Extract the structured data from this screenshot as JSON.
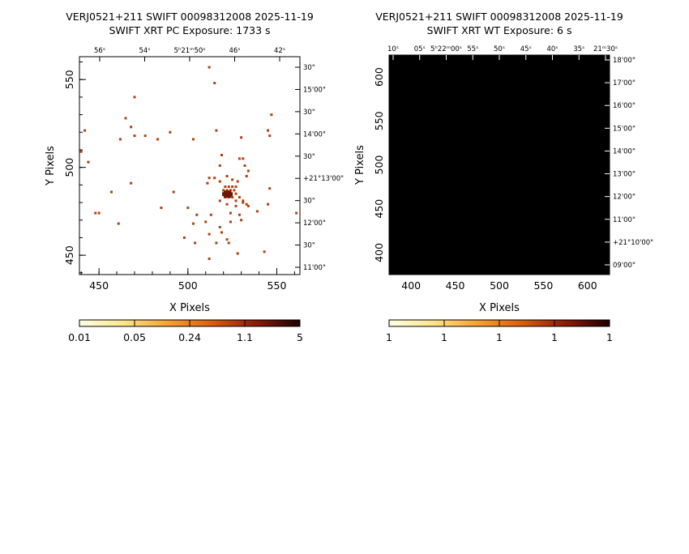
{
  "chart_data": [
    {
      "type": "scatter",
      "title": "VERJ0521+211 SWIFT 00098312008 2025-11-19",
      "subtitle": "SWIFT XRT PC Exposure:        1733 s",
      "xlabel": "X Pixels",
      "ylabel": "Y Pixels",
      "xlim": [
        439,
        563
      ],
      "ylim": [
        439,
        563
      ],
      "xticks": [
        "450",
        "500",
        "550"
      ],
      "yticks": [
        "450",
        "500",
        "550"
      ],
      "top_ticks": [
        "56ˢ",
        "54ˢ",
        "5ʰ21ᵐ50ˢ",
        "46ˢ",
        "42ˢ"
      ],
      "right_ticks": [
        "30\"",
        "15'00\"",
        "30\"",
        "14'00\"",
        "30\"",
        "+21°13'00\"",
        "30\"",
        "12'00\"",
        "30\"",
        "11'00\""
      ],
      "colorbar_ticks": [
        "0.01",
        "0.05",
        "0.24",
        "1.1",
        "5"
      ],
      "events": [
        [
          512,
          557
        ],
        [
          515,
          548
        ],
        [
          470,
          540
        ],
        [
          547,
          530
        ],
        [
          465,
          528
        ],
        [
          468,
          523
        ],
        [
          442,
          521
        ],
        [
          490,
          520
        ],
        [
          516,
          521
        ],
        [
          545,
          521
        ],
        [
          476,
          518
        ],
        [
          470,
          518
        ],
        [
          462,
          516
        ],
        [
          483,
          516
        ],
        [
          503,
          516
        ],
        [
          546,
          518
        ],
        [
          440,
          509
        ],
        [
          530,
          517
        ],
        [
          519,
          507
        ],
        [
          444,
          503
        ],
        [
          529,
          505
        ],
        [
          531,
          505
        ],
        [
          518,
          501
        ],
        [
          532,
          501
        ],
        [
          534,
          498
        ],
        [
          533,
          495
        ],
        [
          512,
          494
        ],
        [
          515,
          494
        ],
        [
          518,
          492
        ],
        [
          522,
          495
        ],
        [
          525,
          493
        ],
        [
          528,
          492
        ],
        [
          521,
          489
        ],
        [
          523,
          489
        ],
        [
          525,
          489
        ],
        [
          527,
          489
        ],
        [
          520,
          487
        ],
        [
          522,
          487
        ],
        [
          524,
          487
        ],
        [
          526,
          487
        ],
        [
          520,
          485
        ],
        [
          522,
          485
        ],
        [
          524,
          485
        ],
        [
          527,
          485
        ],
        [
          521,
          483
        ],
        [
          523,
          483
        ],
        [
          525,
          483
        ],
        [
          529,
          483
        ],
        [
          518,
          481
        ],
        [
          527,
          481
        ],
        [
          531,
          481
        ],
        [
          468,
          491
        ],
        [
          492,
          486
        ],
        [
          511,
          491
        ],
        [
          546,
          488
        ],
        [
          531,
          480
        ],
        [
          533,
          479
        ],
        [
          534,
          478
        ],
        [
          527,
          478
        ],
        [
          522,
          479
        ],
        [
          485,
          477
        ],
        [
          500,
          477
        ],
        [
          448,
          474
        ],
        [
          450,
          474
        ],
        [
          505,
          473
        ],
        [
          513,
          473
        ],
        [
          524,
          474
        ],
        [
          529,
          473
        ],
        [
          539,
          475
        ],
        [
          545,
          479
        ],
        [
          561,
          474
        ],
        [
          461,
          468
        ],
        [
          510,
          469
        ],
        [
          524,
          469
        ],
        [
          530,
          470
        ],
        [
          503,
          468
        ],
        [
          518,
          466
        ],
        [
          519,
          463
        ],
        [
          498,
          460
        ],
        [
          512,
          462
        ],
        [
          522,
          459
        ],
        [
          504,
          457
        ],
        [
          516,
          457
        ],
        [
          523,
          457
        ],
        [
          543,
          452
        ],
        [
          528,
          451
        ],
        [
          512,
          448
        ],
        [
          457,
          486
        ]
      ],
      "bright_source": [
        522,
        485
      ]
    },
    {
      "type": "heatmap",
      "title": "VERJ0521+211 SWIFT 00098312008 2025-11-19",
      "subtitle": "SWIFT XRT WT Exposure:           6 s",
      "xlabel": "X Pixels",
      "ylabel": "Y Pixels",
      "xlim": [
        375,
        625
      ],
      "ylim": [
        375,
        625
      ],
      "xticks": [
        "400",
        "450",
        "500",
        "550",
        "600"
      ],
      "yticks": [
        "400",
        "450",
        "500",
        "550",
        "600"
      ],
      "top_ticks": [
        "10ˢ",
        "05ˢ",
        "5ʰ22ᵐ00ˢ",
        "55ˢ",
        "50ˢ",
        "45ˢ",
        "40ˢ",
        "35ˢ",
        "21ᵐ30ˢ"
      ],
      "right_ticks": [
        "18'00\"",
        "17'00\"",
        "16'00\"",
        "15'00\"",
        "14'00\"",
        "13'00\"",
        "12'00\"",
        "11'00\"",
        "+21°10'00\"",
        "09'00\""
      ],
      "colorbar_ticks": [
        "1",
        "1",
        "1",
        "1",
        "1"
      ],
      "fill_color": "#000000"
    }
  ],
  "colors": {
    "cmap": [
      "#ffffe6",
      "#fde68a",
      "#f7a233",
      "#d95f0e",
      "#8c1a0a",
      "#1a0000"
    ],
    "event_color": "#b1400f",
    "source_color": "#6e1500"
  }
}
